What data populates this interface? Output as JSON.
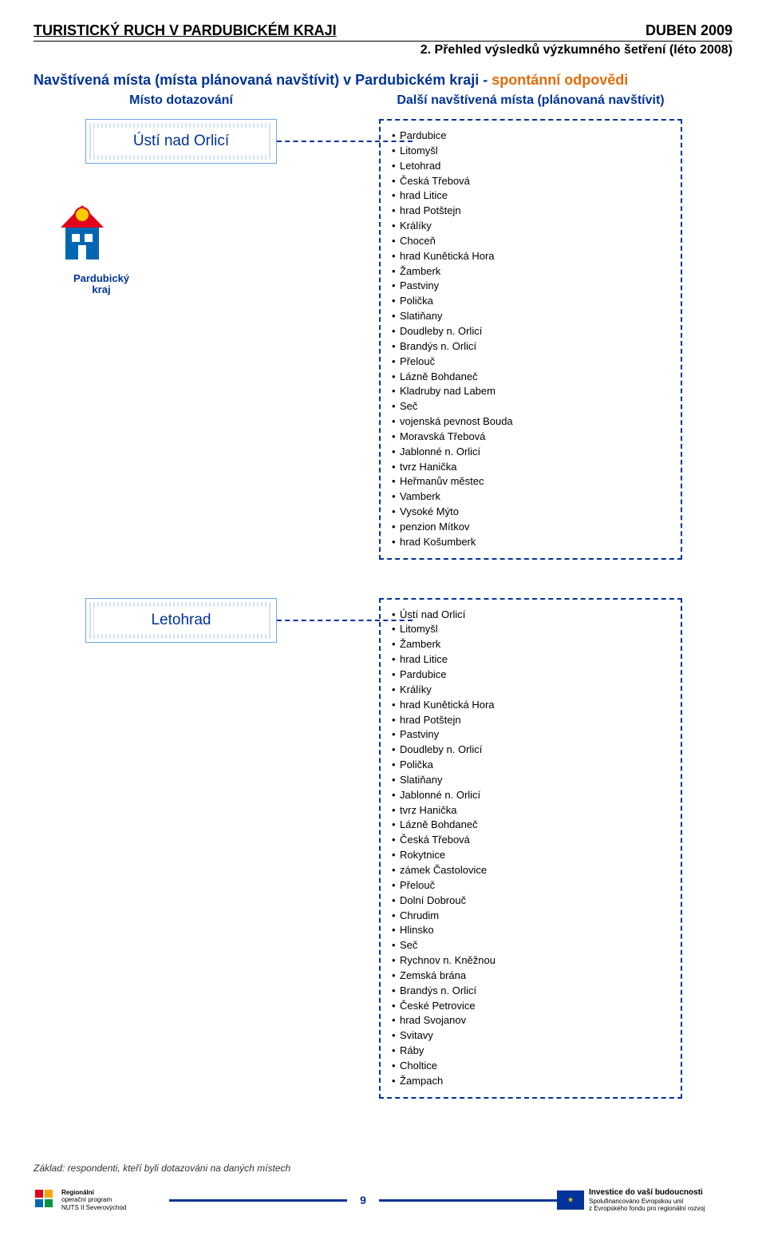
{
  "header": {
    "title": "TURISTICKÝ RUCH V PARDUBICKÉM KRAJI",
    "date": "DUBEN 2009",
    "subtitle": "2. Přehled výsledků výzkumného šetření (léto 2008)"
  },
  "row_title": {
    "prefix": "Navštívená místa (místa plánovaná navštívit) v Pardubickém kraji - ",
    "suffix": "spontánní odpovědi"
  },
  "col_headers": {
    "left": "Místo dotazování",
    "right": "Další navštívená místa (plánovaná navštívit)"
  },
  "blocks": [
    {
      "place": "Ústí nad Orlicí",
      "show_logo": true,
      "items": [
        "Pardubice",
        "Litomyšl",
        "Letohrad",
        "Česká Třebová",
        "hrad Litice",
        "hrad Potštejn",
        "Králíky",
        "Choceň",
        "hrad Kunětická Hora",
        "Žamberk",
        "Pastviny",
        "Polička",
        "Slatiňany",
        "Doudleby n. Orlicí",
        "Brandýs n. Orlicí",
        "Přelouč",
        "Lázně Bohdaneč",
        "Kladruby nad Labem",
        "Seč",
        "vojenská pevnost Bouda",
        "Moravská Třebová",
        "Jablonné n. Orlicí",
        "tvrz Hanička",
        "Heřmanův městec",
        "Vamberk",
        "Vysoké Mýto",
        "penzion Mítkov",
        "hrad Košumberk"
      ]
    },
    {
      "place": "Letohrad",
      "show_logo": false,
      "items": [
        "Ústí nad Orlicí",
        "Litomyšl",
        "Žamberk",
        "hrad Litice",
        "Pardubice",
        "Králíky",
        "hrad Kunětická Hora",
        "hrad Potštejn",
        "Pastviny",
        "Doudleby n. Orlicí",
        "Polička",
        "Slatiňany",
        "Jablonné n. Orlicí",
        "tvrz Hanička",
        "Lázně Bohdaneč",
        "Česká Třebová",
        "Rokytnice",
        "zámek Častolovice",
        "Přelouč",
        "Dolní Dobrouč",
        "Chrudim",
        "Hlinsko",
        "Seč",
        "Rychnov n. Kněžnou",
        "Zemská brána",
        "Brandýs n. Orlicí",
        "České Petrovice",
        "hrad Svojanov",
        "Svitavy",
        "Ráby",
        "Choltice",
        "Žampach"
      ]
    }
  ],
  "logo": {
    "label": "Pardubický\nkraj"
  },
  "footnote": "Základ: respondenti, kteří byli dotazováni na daných místech",
  "footer": {
    "rop_lines": [
      "Regionální",
      "operační program",
      "NUTS II Severovýchod"
    ],
    "page_number": "9",
    "eu_lines": [
      "Investice do vaší budoucnosti",
      "Spolufinancováno Evropskou unií",
      "z Evropského fondu pro regionální rozvoj"
    ]
  },
  "colors": {
    "blue": "#003399",
    "orange": "#e26b0a",
    "box_border": "#6aa7e0"
  }
}
